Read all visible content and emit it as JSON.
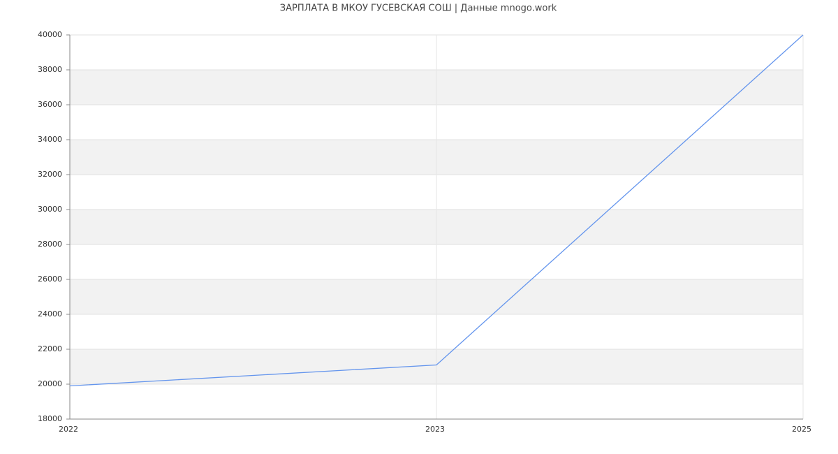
{
  "chart_data": {
    "type": "line",
    "title": "ЗАРПЛАТА В МКОУ ГУСЕВСКАЯ СОШ | Данные mnogo.work",
    "categories": [
      "2022",
      "2023",
      "2025"
    ],
    "series": [
      {
        "color": "#6495ed",
        "values": [
          19900,
          21100,
          40000
        ]
      }
    ],
    "ylim": [
      18000,
      40000
    ],
    "yticks": [
      18000,
      20000,
      22000,
      24000,
      26000,
      28000,
      30000,
      32000,
      34000,
      36000,
      38000,
      40000
    ],
    "grid": true,
    "band_color": "#f2f2f2"
  }
}
